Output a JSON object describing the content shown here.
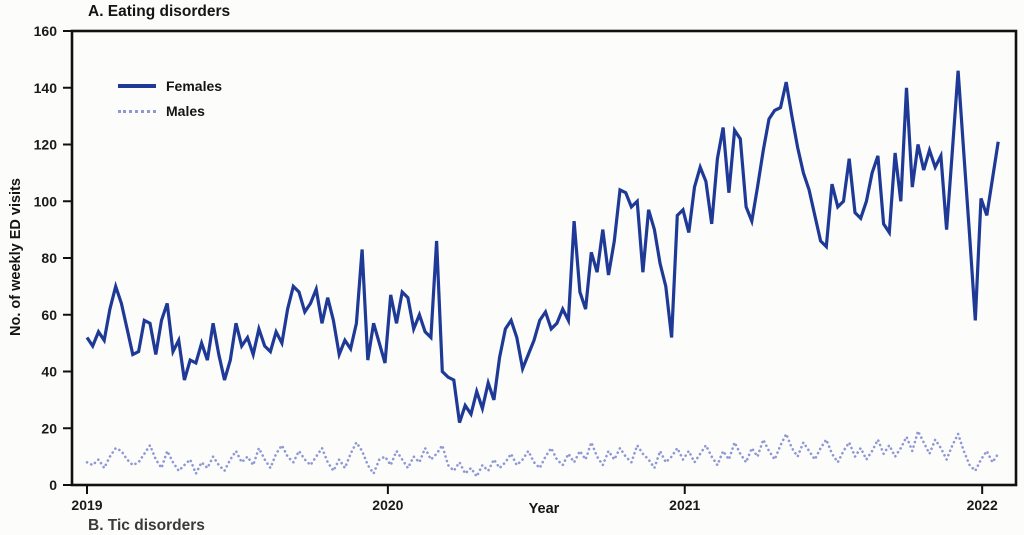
{
  "next_panel": {
    "title": "B. Tic disorders"
  },
  "chart_data": {
    "type": "line",
    "title": "A. Eating disorders",
    "xlabel": "Year",
    "ylabel": "No. of weekly ED visits",
    "ylim": [
      0,
      160
    ],
    "y_ticks": [
      0,
      20,
      40,
      60,
      80,
      100,
      120,
      140,
      160
    ],
    "x_ticks": [
      {
        "label": "2019",
        "week": 0
      },
      {
        "label": "2020",
        "week": 52.5
      },
      {
        "label": "2021",
        "week": 104.3
      },
      {
        "label": "2022",
        "week": 156.2
      }
    ],
    "x_unit": "week",
    "grid": false,
    "legend_position": "upper-left-inside",
    "colors": {
      "females": "#1e3a96",
      "males": "#8f98d4",
      "axis": "#111111"
    },
    "series": [
      {
        "name": "Females",
        "style": "solid",
        "color": "#1e3a96",
        "values": [
          52,
          49,
          54,
          51,
          62,
          70,
          64,
          55,
          46,
          47,
          58,
          57,
          46,
          58,
          64,
          47,
          51,
          37,
          44,
          43,
          50,
          44,
          57,
          46,
          37,
          44,
          57,
          49,
          52,
          46,
          55,
          49,
          47,
          54,
          50,
          62,
          70,
          68,
          61,
          64,
          69,
          57,
          66,
          58,
          46,
          51,
          48,
          57,
          83,
          44,
          57,
          50,
          43,
          67,
          57,
          68,
          66,
          55,
          60,
          54,
          52,
          86,
          40,
          38,
          37,
          22,
          28,
          25,
          33,
          27,
          36,
          30,
          45,
          55,
          58,
          52,
          41,
          46,
          51,
          58,
          61,
          55,
          57,
          62,
          58,
          93,
          68,
          62,
          82,
          75,
          90,
          74,
          86,
          104,
          103,
          98,
          100,
          75,
          97,
          90,
          78,
          70,
          52,
          95,
          97,
          89,
          105,
          112,
          107,
          92,
          115,
          126,
          103,
          125,
          122,
          98,
          93,
          105,
          118,
          129,
          132,
          133,
          142,
          130,
          119,
          110,
          104,
          95,
          86,
          84,
          106,
          98,
          100,
          115,
          96,
          94,
          100,
          110,
          116,
          92,
          89,
          117,
          100,
          140,
          105,
          120,
          111,
          118,
          112,
          116,
          90,
          118,
          146,
          117,
          88,
          58,
          101,
          95,
          108,
          121
        ]
      },
      {
        "name": "Males",
        "style": "dotted",
        "color": "#8f98d4",
        "values": [
          8,
          7,
          9,
          6,
          10,
          13,
          12,
          9,
          7,
          8,
          11,
          14,
          9,
          6,
          12,
          8,
          5,
          7,
          9,
          4,
          8,
          6,
          10,
          7,
          5,
          9,
          12,
          8,
          10,
          7,
          13,
          9,
          6,
          11,
          14,
          10,
          8,
          12,
          9,
          7,
          10,
          13,
          8,
          5,
          9,
          6,
          11,
          15,
          12,
          7,
          4,
          9,
          10,
          7,
          12,
          9,
          6,
          10,
          8,
          13,
          9,
          11,
          14,
          7,
          5,
          8,
          4,
          6,
          3,
          7,
          5,
          9,
          6,
          8,
          11,
          7,
          9,
          12,
          8,
          6,
          10,
          13,
          9,
          7,
          11,
          8,
          12,
          9,
          15,
          10,
          7,
          12,
          9,
          13,
          10,
          8,
          14,
          11,
          9,
          6,
          12,
          8,
          10,
          13,
          9,
          12,
          8,
          11,
          14,
          10,
          7,
          12,
          9,
          15,
          11,
          8,
          13,
          10,
          16,
          12,
          9,
          14,
          18,
          13,
          10,
          15,
          12,
          9,
          13,
          16,
          11,
          8,
          12,
          15,
          10,
          13,
          9,
          12,
          16,
          11,
          14,
          10,
          13,
          17,
          12,
          19,
          15,
          11,
          16,
          13,
          9,
          14,
          18,
          12,
          7,
          5,
          9,
          12,
          8,
          11
        ]
      }
    ]
  }
}
